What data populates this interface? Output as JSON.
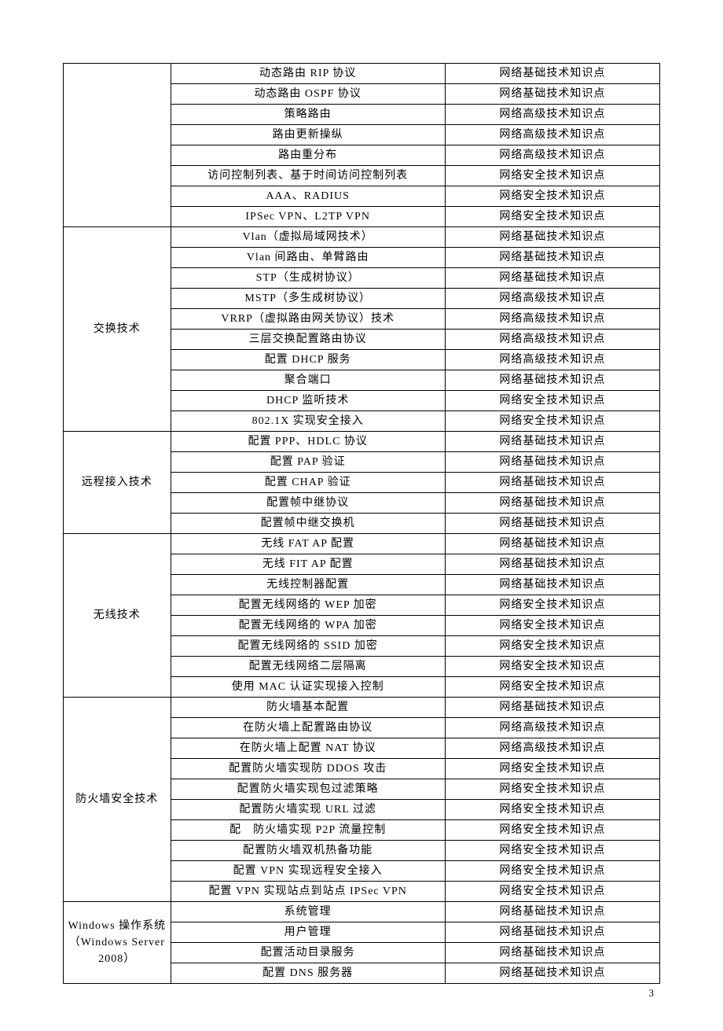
{
  "page_number": "3",
  "table": {
    "columns_widths": [
      18,
      46,
      36
    ],
    "border_color": "#000000",
    "background_color": "#ffffff",
    "font_family": "SimSun",
    "font_size_pt": 14,
    "groups": [
      {
        "category": "",
        "show_category": false,
        "rows": [
          {
            "topic": "动态路由 RIP 协议",
            "level": "网络基础技术知识点"
          },
          {
            "topic": "动态路由 OSPF 协议",
            "level": "网络基础技术知识点"
          },
          {
            "topic": "策略路由",
            "level": "网络高级技术知识点"
          },
          {
            "topic": "路由更新操纵",
            "level": "网络高级技术知识点"
          },
          {
            "topic": "路由重分布",
            "level": "网络高级技术知识点"
          },
          {
            "topic": "访问控制列表、基于时间访问控制列表",
            "level": "网络安全技术知识点"
          },
          {
            "topic": "AAA、RADIUS",
            "level": "网络安全技术知识点"
          },
          {
            "topic": "IPSec VPN、L2TP VPN",
            "level": "网络安全技术知识点"
          }
        ]
      },
      {
        "category": "交换技术",
        "show_category": true,
        "rows": [
          {
            "topic": "Vlan（虚拟局域网技术）",
            "level": "网络基础技术知识点"
          },
          {
            "topic": "Vlan 间路由、单臂路由",
            "level": "网络基础技术知识点"
          },
          {
            "topic": "STP（生成树协议）",
            "level": "网络基础技术知识点"
          },
          {
            "topic": "MSTP（多生成树协议）",
            "level": "网络高级技术知识点"
          },
          {
            "topic": "VRRP（虚拟路由网关协议）技术",
            "level": "网络高级技术知识点"
          },
          {
            "topic": "三层交换配置路由协议",
            "level": "网络高级技术知识点"
          },
          {
            "topic": "配置 DHCP 服务",
            "level": "网络高级技术知识点"
          },
          {
            "topic": "聚合端口",
            "level": "网络基础技术知识点"
          },
          {
            "topic": "DHCP 监听技术",
            "level": "网络安全技术知识点"
          },
          {
            "topic": "802.1X 实现安全接入",
            "level": "网络安全技术知识点"
          }
        ]
      },
      {
        "category": "远程接入技术",
        "show_category": true,
        "rows": [
          {
            "topic": "配置 PPP、HDLC 协议",
            "level": "网络基础技术知识点"
          },
          {
            "topic": "配置 PAP 验证",
            "level": "网络基础技术知识点"
          },
          {
            "topic": "配置 CHAP 验证",
            "level": "网络基础技术知识点"
          },
          {
            "topic": "配置帧中继协议",
            "level": "网络基础技术知识点"
          },
          {
            "topic": "配置帧中继交换机",
            "level": "网络基础技术知识点"
          }
        ]
      },
      {
        "category": "无线技术",
        "show_category": true,
        "rows": [
          {
            "topic": "无线 FAT AP 配置",
            "level": "网络基础技术知识点"
          },
          {
            "topic": "无线 FIT AP 配置",
            "level": "网络基础技术知识点"
          },
          {
            "topic": "无线控制器配置",
            "level": "网络基础技术知识点"
          },
          {
            "topic": "配置无线网络的 WEP 加密",
            "level": "网络安全技术知识点"
          },
          {
            "topic": "配置无线网络的 WPA 加密",
            "level": "网络安全技术知识点"
          },
          {
            "topic": "配置无线网络的 SSID 加密",
            "level": "网络安全技术知识点"
          },
          {
            "topic": "配置无线网络二层隔离",
            "level": "网络安全技术知识点"
          },
          {
            "topic": "使用 MAC 认证实现接入控制",
            "level": "网络安全技术知识点"
          }
        ]
      },
      {
        "category": "防火墙安全技术",
        "show_category": true,
        "rows": [
          {
            "topic": "防火墙基本配置",
            "level": "网络基础技术知识点"
          },
          {
            "topic": "在防火墙上配置路由协议",
            "level": "网络高级技术知识点"
          },
          {
            "topic": "在防火墙上配置 NAT 协议",
            "level": "网络高级技术知识点"
          },
          {
            "topic": "配置防火墙实现防 DDOS 攻击",
            "level": "网络安全技术知识点"
          },
          {
            "topic": "配置防火墙实现包过滤策略",
            "level": "网络安全技术知识点"
          },
          {
            "topic": "配置防火墙实现 URL 过滤",
            "level": "网络安全技术知识点"
          },
          {
            "topic": "配　防火墙实现 P2P 流量控制",
            "level": "网络安全技术知识点"
          },
          {
            "topic": "配置防火墙双机热备功能",
            "level": "网络安全技术知识点"
          },
          {
            "topic": "配置 VPN 实现远程安全接入",
            "level": "网络安全技术知识点"
          },
          {
            "topic": "配置 VPN 实现站点到站点 IPSec VPN",
            "level": "网络安全技术知识点"
          }
        ]
      },
      {
        "category": "Windows 操作系统（Windows Server 2008）",
        "show_category": true,
        "rows": [
          {
            "topic": "系统管理",
            "level": "网络基础技术知识点"
          },
          {
            "topic": "用户管理",
            "level": "网络基础技术知识点"
          },
          {
            "topic": "配置活动目录服务",
            "level": "网络基础技术知识点"
          },
          {
            "topic": "配置 DNS 服务器",
            "level": "网络基础技术知识点"
          }
        ]
      }
    ]
  }
}
